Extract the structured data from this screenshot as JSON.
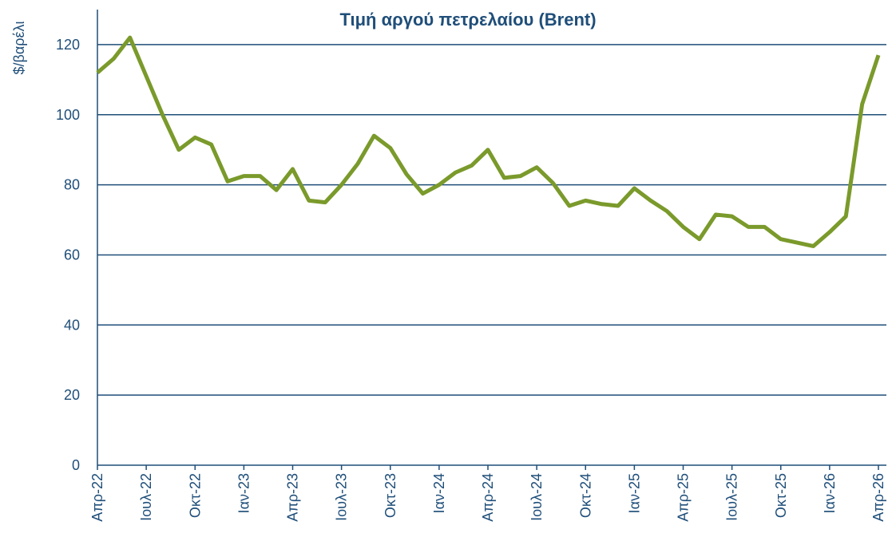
{
  "chart_data": {
    "type": "line",
    "title": "Τιμή αργού πετρελαίου (Brent)",
    "y_label": "$/βαρέλι",
    "categories": [
      "Απρ-22",
      null,
      null,
      "Ιουλ-22",
      null,
      null,
      "Οκτ-22",
      null,
      null,
      "Ιαν-23",
      null,
      null,
      "Απρ-23",
      null,
      null,
      "Ιουλ-23",
      null,
      null,
      "Οκτ-23",
      null,
      null,
      "Ιαν-24",
      null,
      null,
      "Απρ-24",
      null,
      null,
      "Ιουλ-24",
      null,
      null,
      "Οκτ-24",
      null,
      null,
      "Ιαν-25",
      null,
      null,
      "Απρ-25",
      null,
      null,
      "Ιουλ-25",
      null,
      null,
      "Οκτ-25",
      null,
      null,
      "Ιαν-26",
      null,
      null,
      "Απρ-26"
    ],
    "series": [
      {
        "color": "#7a9a2b",
        "values": [
          112,
          116,
          122,
          111,
          100,
          90,
          93.5,
          91.5,
          81,
          82.5,
          82.5,
          78.5,
          84.5,
          75.5,
          75,
          80,
          86,
          94,
          90.5,
          83,
          77.5,
          80,
          83.5,
          85.5,
          90,
          82,
          82.5,
          85,
          80.5,
          74,
          75.5,
          74.5,
          74,
          79,
          75.5,
          72.5,
          68,
          64.5,
          71.5,
          71,
          68,
          68,
          64.5,
          63.5,
          62.5,
          66.5,
          71,
          103,
          117
        ]
      }
    ],
    "ylim": [
      0,
      130
    ],
    "yticks": [
      0,
      20,
      40,
      60,
      80,
      100,
      120
    ],
    "grid": true
  }
}
